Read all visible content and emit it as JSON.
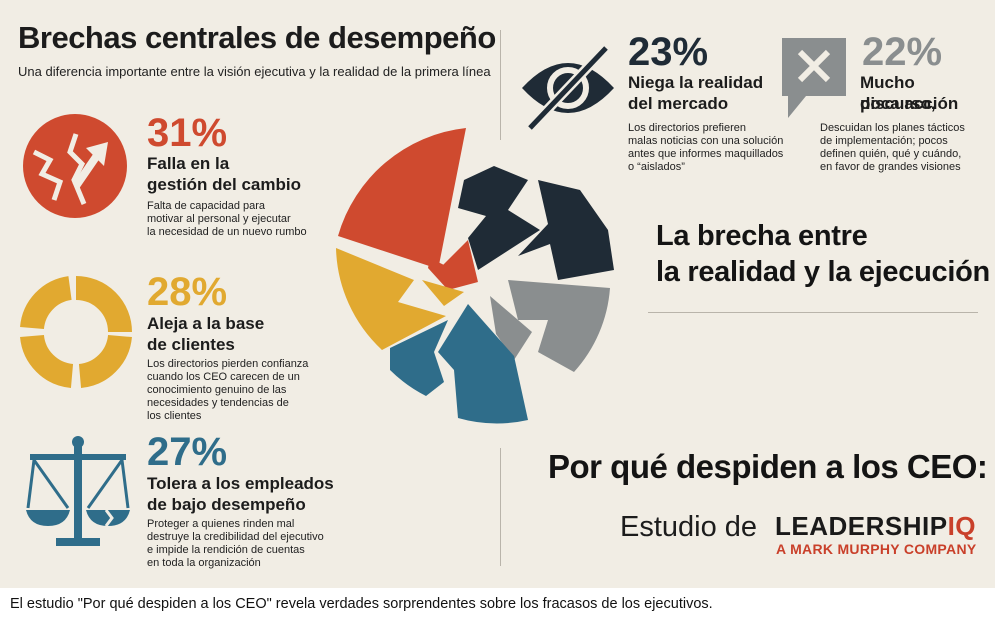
{
  "header": {
    "title": "Brechas centrales de desempeño",
    "subtitle": "Una diferencia importante entre la visión ejecutiva y la realidad de la primera línea"
  },
  "stats": [
    {
      "percent": "31%",
      "heading_1": "Falla en la",
      "heading_2": "gestión del cambio",
      "desc": [
        "Falta de capacidad para",
        "motivar al personal y ejecutar",
        "la necesidad de un nuevo rumbo"
      ],
      "color": "#cf4a2f",
      "icon": "broken-arrow-circle-icon"
    },
    {
      "percent": "28%",
      "heading_1": "Aleja a la base",
      "heading_2": "de clientes",
      "desc": [
        "Los directorios pierden confianza",
        "cuando los CEO carecen de un",
        "conocimiento genuino de las",
        "necesidades y tendencias de",
        "los clientes"
      ],
      "color": "#e1a930",
      "icon": "ring-chart-icon"
    },
    {
      "percent": "27%",
      "heading_1": "Tolera a los empleados",
      "heading_2": "de bajo desempeño",
      "desc": [
        "Proteger a quienes rinden mal",
        "destruye la credibilidad del ejecutivo",
        "e impide la rendición de cuentas",
        "en toda la organización"
      ],
      "color": "#2f6d8a",
      "icon": "broken-scale-icon"
    },
    {
      "percent": "23%",
      "heading_1": "Niega la realidad",
      "heading_2": "del mercado",
      "desc": [
        "Los directorios prefieren",
        "malas noticias con una solución",
        "antes que informes maquillados",
        "o “aislados”"
      ],
      "color": "#1f2b36",
      "icon": "eye-slash-icon"
    },
    {
      "percent": "22%",
      "heading_1": "Mucho discurso,",
      "heading_2": "poca acción",
      "desc": [
        "Descuidan los planes tácticos",
        "de implementación; pocos",
        "definen quién, qué y cuándo,",
        "en favor de grandes visiones"
      ],
      "color": "#8a8e8f",
      "icon": "speech-x-icon"
    }
  ],
  "center": {
    "line_1": "La brecha entre",
    "line_2": "la realidad y la ejecución"
  },
  "study": {
    "title": "Por qué despiden a los CEO:",
    "prefix": "Estudio de",
    "brand_main": "LEADERSHIP",
    "brand_iq": "IQ",
    "brand_sub": "A MARK MURPHY COMPANY"
  },
  "caption": "El estudio \"Por qué despiden a los CEO\" revela verdades sorprendentes sobre los fracasos de los ejecutivos.",
  "colors": {
    "red": "#cf4a2f",
    "yellow": "#e1a930",
    "blue": "#2f6d8a",
    "navy": "#1f2b36",
    "gray": "#8a8e8f",
    "background": "#f1ede4"
  }
}
